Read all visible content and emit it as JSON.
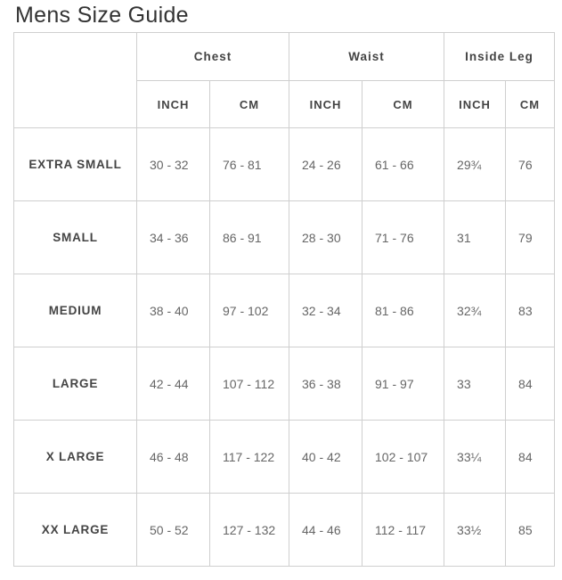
{
  "title": "Mens Size Guide",
  "groups": {
    "chest": "Chest",
    "waist": "Waist",
    "inside_leg": "Inside Leg"
  },
  "units": {
    "inch": "INCH",
    "cm": "CM"
  },
  "rows": [
    {
      "size": "EXTRA SMALL",
      "chest_in": "30 - 32",
      "chest_cm": "76 - 81",
      "waist_in": "24 - 26",
      "waist_cm": "61 - 66",
      "leg_in": "29¾",
      "leg_cm": "76"
    },
    {
      "size": "SMALL",
      "chest_in": "34 - 36",
      "chest_cm": "86 - 91",
      "waist_in": "28 - 30",
      "waist_cm": "71 - 76",
      "leg_in": "31",
      "leg_cm": "79"
    },
    {
      "size": "MEDIUM",
      "chest_in": "38 - 40",
      "chest_cm": "97 - 102",
      "waist_in": "32 - 34",
      "waist_cm": "81 - 86",
      "leg_in": "32¾",
      "leg_cm": "83"
    },
    {
      "size": "LARGE",
      "chest_in": "42 - 44",
      "chest_cm": "107 - 112",
      "waist_in": "36 - 38",
      "waist_cm": "91 - 97",
      "leg_in": "33",
      "leg_cm": "84"
    },
    {
      "size": "X LARGE",
      "chest_in": "46 - 48",
      "chest_cm": "117 - 122",
      "waist_in": "40 - 42",
      "waist_cm": "102 - 107",
      "leg_in": "33¼",
      "leg_cm": "84"
    },
    {
      "size": "XX LARGE",
      "chest_in": "50 - 52",
      "chest_cm": "127 - 132",
      "waist_in": "44 - 46",
      "waist_cm": "112 - 117",
      "leg_in": "33½",
      "leg_cm": "85"
    }
  ]
}
